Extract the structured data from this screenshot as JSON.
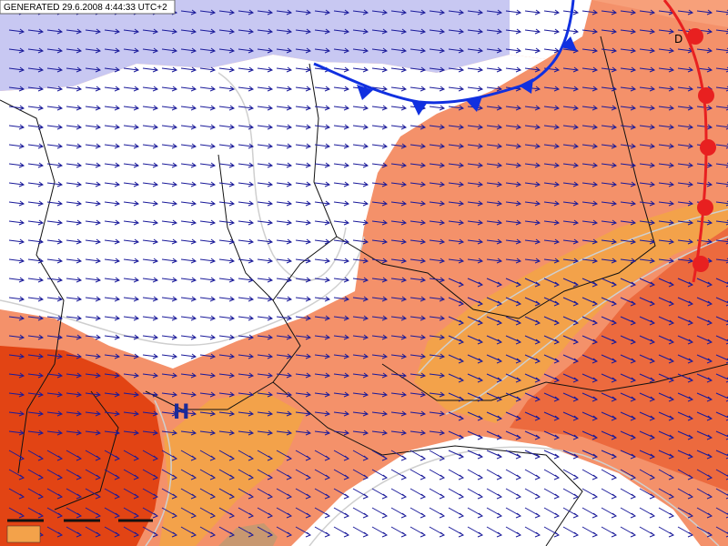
{
  "header": {
    "generated": "GENERATED 29.6.2008 4:44:33 UTC+2"
  },
  "labels": {
    "high": "H",
    "low": "D"
  }
}
